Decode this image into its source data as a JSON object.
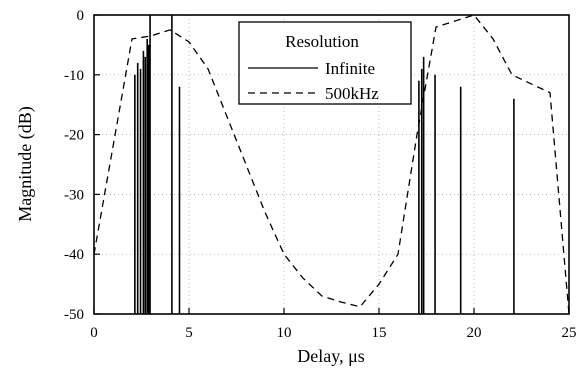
{
  "chart_data": {
    "type": "line",
    "title": "",
    "xlabel": "Delay, μs",
    "ylabel": "Magnitude (dB)",
    "xlim": [
      0,
      25
    ],
    "ylim": [
      -50,
      0
    ],
    "x_ticks": [
      0,
      5,
      10,
      15,
      20,
      25
    ],
    "y_ticks": [
      0,
      -10,
      -20,
      -30,
      -40,
      -50
    ],
    "grid": true,
    "legend": {
      "title": "Resolution",
      "placement": "top-center",
      "entries": [
        {
          "label": "Infinite",
          "style": "solid"
        },
        {
          "label": "500kHz",
          "style": "dashed"
        }
      ]
    },
    "series": [
      {
        "name": "Infinite",
        "style": "impulses",
        "points": [
          {
            "x": 2.15,
            "y": -10
          },
          {
            "x": 2.3,
            "y": -8
          },
          {
            "x": 2.45,
            "y": -9
          },
          {
            "x": 2.6,
            "y": -6
          },
          {
            "x": 2.7,
            "y": -7
          },
          {
            "x": 2.8,
            "y": -4
          },
          {
            "x": 2.88,
            "y": -5
          },
          {
            "x": 2.95,
            "y": 0
          },
          {
            "x": 4.1,
            "y": 0
          },
          {
            "x": 4.5,
            "y": -12
          },
          {
            "x": 17.1,
            "y": -11
          },
          {
            "x": 17.25,
            "y": -9
          },
          {
            "x": 17.35,
            "y": -7
          },
          {
            "x": 17.95,
            "y": -10
          },
          {
            "x": 19.3,
            "y": -12
          },
          {
            "x": 22.1,
            "y": -14
          }
        ]
      },
      {
        "name": "500kHz",
        "style": "dashed",
        "points": [
          {
            "x": 0,
            "y": -40
          },
          {
            "x": 1,
            "y": -22
          },
          {
            "x": 2,
            "y": -4
          },
          {
            "x": 3,
            "y": -3.5
          },
          {
            "x": 4,
            "y": -2.5
          },
          {
            "x": 5,
            "y": -4.5
          },
          {
            "x": 6,
            "y": -9
          },
          {
            "x": 7,
            "y": -17
          },
          {
            "x": 8,
            "y": -25
          },
          {
            "x": 9,
            "y": -33
          },
          {
            "x": 10,
            "y": -40
          },
          {
            "x": 11,
            "y": -44
          },
          {
            "x": 12,
            "y": -47
          },
          {
            "x": 13,
            "y": -48
          },
          {
            "x": 14,
            "y": -48.8
          },
          {
            "x": 15,
            "y": -45
          },
          {
            "x": 16,
            "y": -40
          },
          {
            "x": 17,
            "y": -20
          },
          {
            "x": 18,
            "y": -2
          },
          {
            "x": 19,
            "y": -1
          },
          {
            "x": 20,
            "y": 0
          },
          {
            "x": 21,
            "y": -4
          },
          {
            "x": 22,
            "y": -10
          },
          {
            "x": 23,
            "y": -11.5
          },
          {
            "x": 24,
            "y": -13
          },
          {
            "x": 25,
            "y": -50
          }
        ]
      }
    ]
  }
}
